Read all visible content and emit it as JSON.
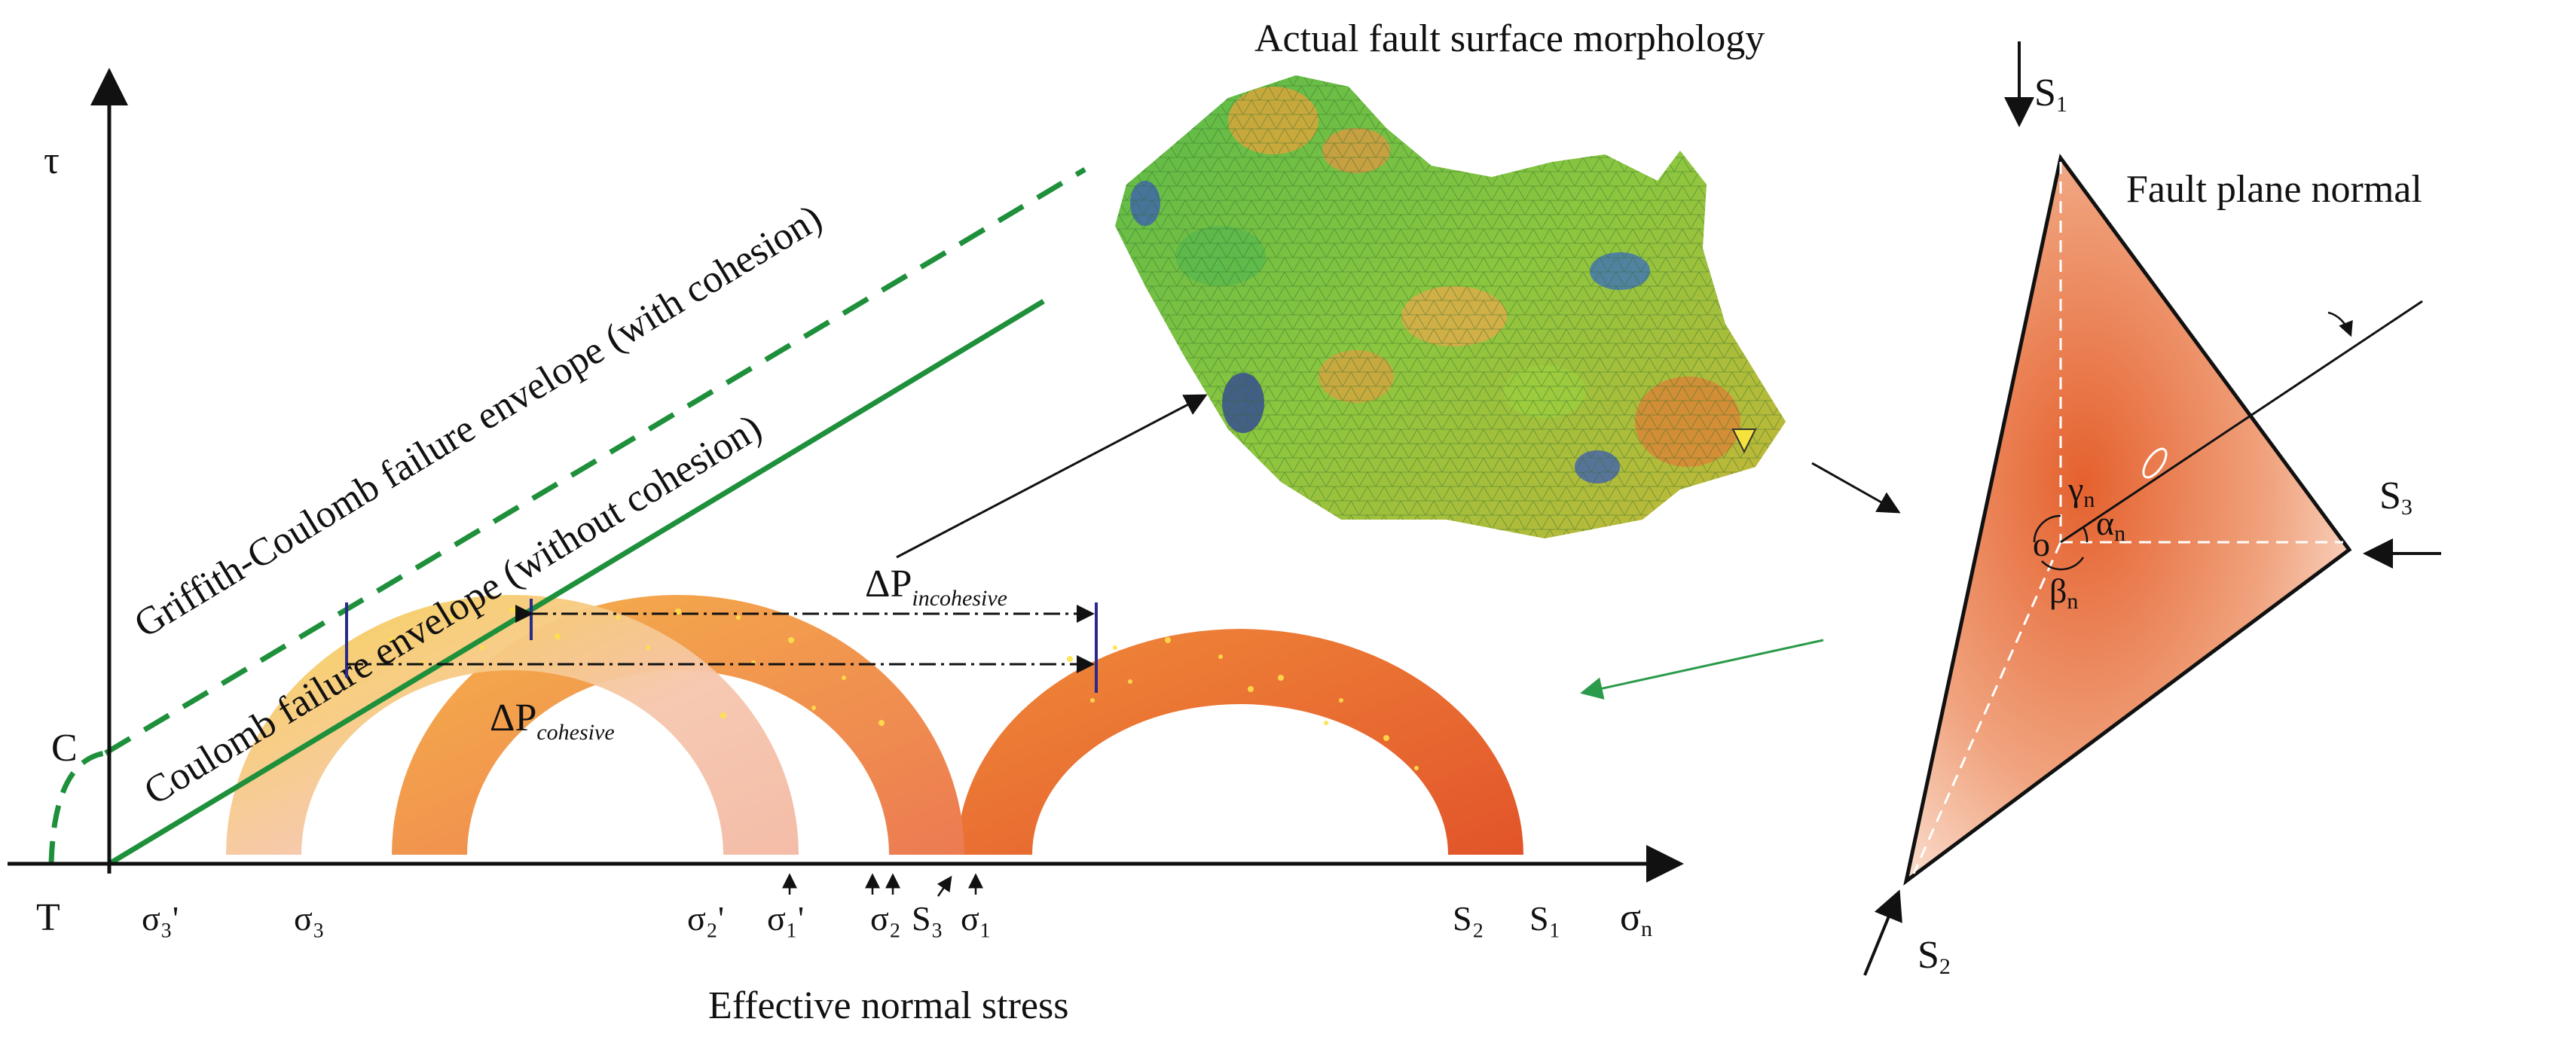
{
  "title_surface": "Actual fault surface morphology",
  "label_fault_normal": "Fault plane normal",
  "axis": {
    "x_label": "Effective normal stress",
    "y_symbol": "τ",
    "c_label": "C",
    "t_label": "T",
    "sigma_n": "σ",
    "sigma_n_sub": "n"
  },
  "envelopes": {
    "with_cohesion": "Griffith-Coulomb failure envelope (with cohesion)",
    "without_cohesion": "Coulomb failure envelope (without cohesion)"
  },
  "dp": {
    "incohesive_main": "ΔP",
    "incohesive_sub": "incohesive",
    "cohesive_main": "ΔP",
    "cohesive_sub": "cohesive"
  },
  "ticks": {
    "s3p": "σ₃'",
    "s3": "σ₃",
    "s2p": "σ₂'",
    "s1p": "σ₁'",
    "s2": "σ₂",
    "S3": "S₃",
    "s1": "σ₁",
    "S2": "S₂",
    "S1": "S₁"
  },
  "tetra": {
    "S1": "S",
    "S1_sub": "1",
    "S2": "S",
    "S2_sub": "2",
    "S3": "S",
    "S3_sub": "3",
    "O": "o",
    "gamma": "γ",
    "gamma_sub": "n",
    "alpha": "α",
    "alpha_sub": "n",
    "beta": "β",
    "beta_sub": "n"
  },
  "colors": {
    "envelope_green": "#1e8f3a",
    "arrow_green": "#2b9a4a",
    "mohr_dark": "#e8572a",
    "mohr_light": "#f2b8a0",
    "mohr_yellow": "#f5c518",
    "tetra_face": "#e9743f"
  }
}
